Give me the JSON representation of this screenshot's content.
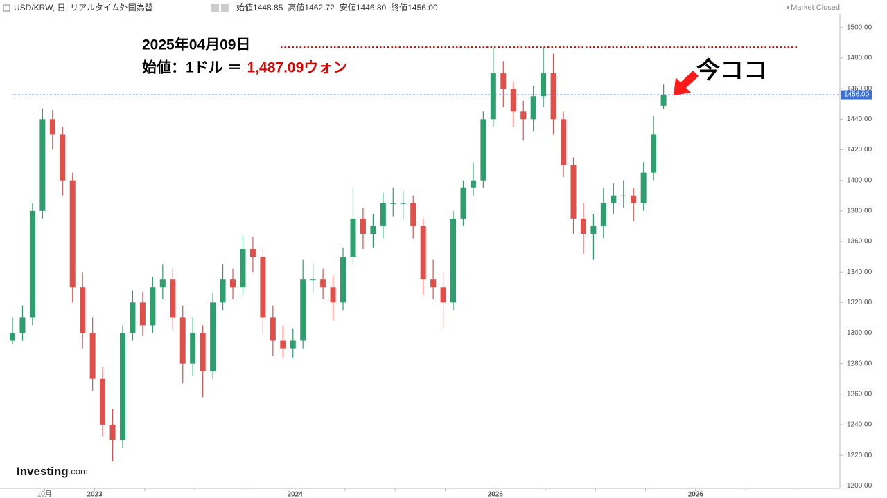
{
  "chart_data": {
    "type": "candlestick",
    "title": "USD/KRW, 日, リアルタイム外国為替",
    "ohlc_header": [
      {
        "label": "始値",
        "value": "1448.85"
      },
      {
        "label": "高値",
        "value": "1462.72"
      },
      {
        "label": "安値",
        "value": "1446.80"
      },
      {
        "label": "終値",
        "value": "1456.00"
      }
    ],
    "status": "Market Closed",
    "logo": "Investing",
    "logo_suffix": ".com",
    "up_color": "#2e9e6e",
    "down_color": "#e0504b",
    "x": [
      2022.59,
      2022.64,
      2022.69,
      2022.74,
      2022.79,
      2022.84,
      2022.89,
      2022.94,
      2022.99,
      2023.04,
      2023.09,
      2023.14,
      2023.19,
      2023.24,
      2023.29,
      2023.34,
      2023.39,
      2023.44,
      2023.49,
      2023.54,
      2023.59,
      2023.64,
      2023.69,
      2023.74,
      2023.79,
      2023.84,
      2023.89,
      2023.94,
      2023.99,
      2024.04,
      2024.09,
      2024.14,
      2024.19,
      2024.24,
      2024.29,
      2024.34,
      2024.39,
      2024.44,
      2024.49,
      2024.54,
      2024.59,
      2024.64,
      2024.69,
      2024.74,
      2024.79,
      2024.84,
      2024.89,
      2024.94,
      2024.99,
      2025.04,
      2025.09,
      2025.14,
      2025.19,
      2025.24,
      2025.29,
      2025.34,
      2025.39,
      2025.44,
      2025.49,
      2025.54,
      2025.59,
      2025.64,
      2025.69,
      2025.74,
      2025.79,
      2025.84
    ],
    "open": [
      1295,
      1300,
      1310,
      1380,
      1440,
      1430,
      1400,
      1330,
      1300,
      1270,
      1240,
      1230,
      1300,
      1320,
      1305,
      1330,
      1335,
      1310,
      1280,
      1300,
      1275,
      1320,
      1335,
      1330,
      1355,
      1350,
      1310,
      1295,
      1290,
      1295,
      1335,
      1335,
      1330,
      1320,
      1350,
      1375,
      1365,
      1370,
      1385,
      1385,
      1385,
      1370,
      1335,
      1330,
      1320,
      1375,
      1395,
      1400,
      1440,
      1470,
      1460,
      1445,
      1440,
      1455,
      1470,
      1440,
      1410,
      1375,
      1365,
      1370,
      1385,
      1390,
      1390,
      1385,
      1405,
      1448.85
    ],
    "high": [
      1310,
      1318,
      1385,
      1447,
      1446,
      1435,
      1405,
      1340,
      1310,
      1278,
      1250,
      1305,
      1328,
      1327,
      1337,
      1345,
      1342,
      1318,
      1310,
      1305,
      1326,
      1345,
      1342,
      1364,
      1363,
      1355,
      1318,
      1305,
      1303,
      1348,
      1345,
      1342,
      1338,
      1356,
      1395,
      1382,
      1378,
      1392,
      1395,
      1393,
      1390,
      1375,
      1348,
      1340,
      1380,
      1400,
      1412,
      1445,
      1487,
      1478,
      1465,
      1452,
      1462,
      1487,
      1483,
      1445,
      1415,
      1385,
      1378,
      1395,
      1398,
      1400,
      1395,
      1412,
      1442,
      1462.72
    ],
    "low": [
      1293,
      1295,
      1305,
      1375,
      1420,
      1390,
      1320,
      1290,
      1262,
      1232,
      1216,
      1225,
      1295,
      1298,
      1300,
      1322,
      1302,
      1267,
      1272,
      1258,
      1270,
      1315,
      1322,
      1325,
      1340,
      1300,
      1285,
      1284,
      1284,
      1290,
      1326,
      1322,
      1308,
      1315,
      1345,
      1355,
      1356,
      1362,
      1376,
      1375,
      1362,
      1325,
      1322,
      1303,
      1315,
      1370,
      1390,
      1395,
      1435,
      1448,
      1435,
      1426,
      1432,
      1448,
      1430,
      1402,
      1365,
      1352,
      1348,
      1362,
      1378,
      1382,
      1373,
      1380,
      1400,
      1446.8
    ],
    "close": [
      1300,
      1310,
      1380,
      1440,
      1430,
      1400,
      1330,
      1300,
      1270,
      1240,
      1230,
      1300,
      1320,
      1305,
      1330,
      1335,
      1310,
      1280,
      1300,
      1275,
      1320,
      1335,
      1330,
      1355,
      1350,
      1310,
      1295,
      1290,
      1295,
      1335,
      1335,
      1330,
      1320,
      1350,
      1375,
      1365,
      1370,
      1385,
      1385,
      1385,
      1370,
      1335,
      1330,
      1320,
      1375,
      1395,
      1400,
      1440,
      1470,
      1460,
      1445,
      1440,
      1455,
      1470,
      1440,
      1410,
      1375,
      1365,
      1370,
      1385,
      1390,
      1390,
      1385,
      1405,
      1430,
      1456
    ],
    "xlim": [
      2022.59,
      2026.72
    ],
    "xticks": [
      {
        "value": 2022.75,
        "label": "10月"
      },
      2023,
      2024,
      2025,
      2026
    ],
    "xminor_ticks": [
      2023.25,
      2023.5,
      2023.75,
      2024.25,
      2024.5,
      2024.75,
      2025.25,
      2025.5,
      2025.75,
      2026.25,
      2026.5
    ],
    "ylim": [
      1199,
      1509
    ],
    "yticks": [
      {
        "value": 1200,
        "label": "1200.00"
      },
      {
        "value": 1220,
        "label": "1220.00"
      },
      {
        "value": 1240,
        "label": "1240.00"
      },
      {
        "value": 1260,
        "label": "1260.00"
      },
      {
        "value": 1280,
        "label": "1280.00"
      },
      {
        "value": 1300,
        "label": "1300.00"
      },
      {
        "value": 1320,
        "label": "1320.00"
      },
      {
        "value": 1340,
        "label": "1340.00"
      },
      {
        "value": 1360,
        "label": "1360.00"
      },
      {
        "value": 1380,
        "label": "1380.00"
      },
      {
        "value": 1400,
        "label": "1400.00"
      },
      {
        "value": 1420,
        "label": "1420.00"
      },
      {
        "value": 1440,
        "label": "1440.00"
      },
      {
        "value": 1460,
        "label": "1460.00"
      },
      {
        "value": 1480,
        "label": "1480.00"
      },
      {
        "value": 1500,
        "label": "1500.00"
      }
    ],
    "current_price": {
      "value": 1456,
      "label": "1456.00"
    },
    "annotation": {
      "date": "2025年04月09日",
      "prefix": "始値：1ドル ＝",
      "level": {
        "value": 1487.09,
        "label": "1,487.09ウォン"
      },
      "pointer": "今ココ"
    }
  }
}
